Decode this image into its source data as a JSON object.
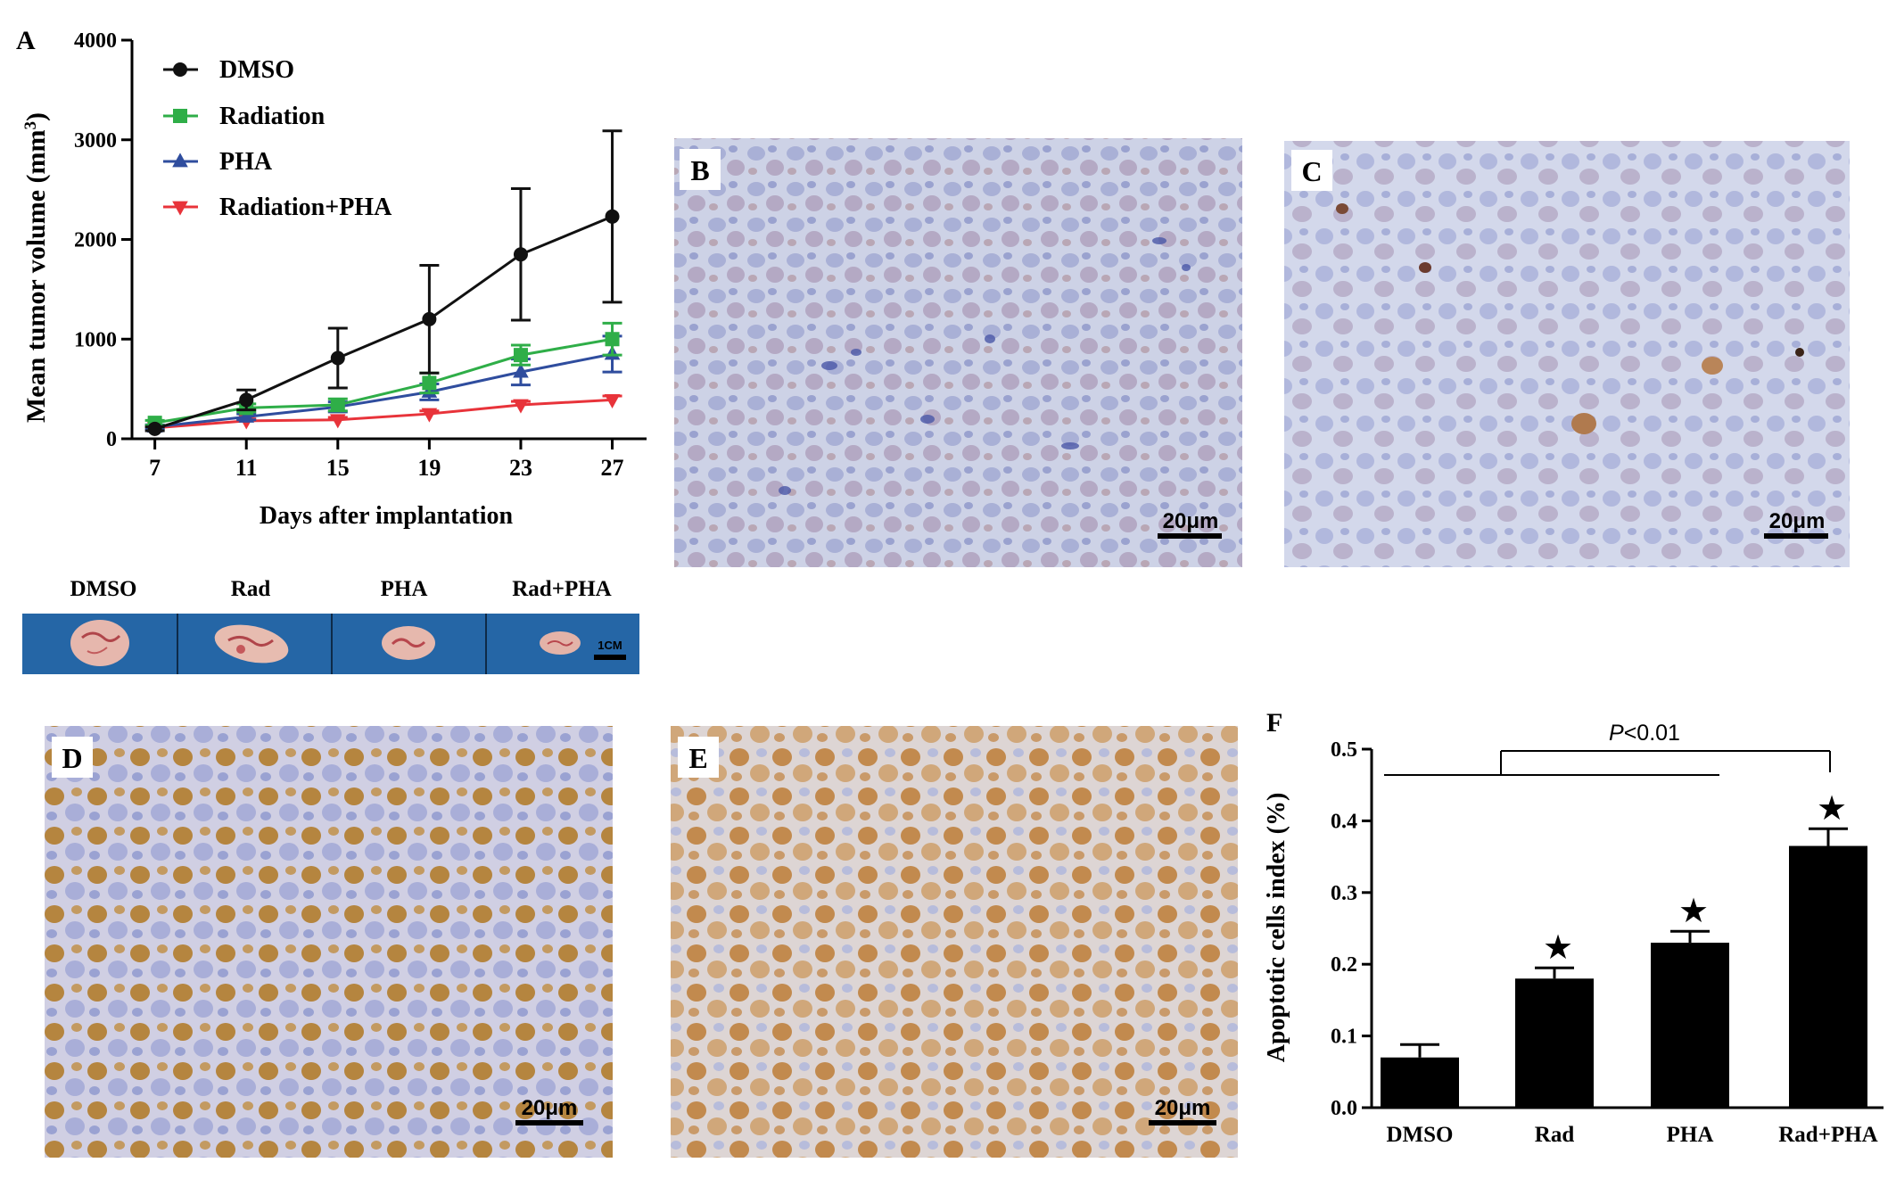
{
  "panels": {
    "A": {
      "letter": "A"
    },
    "B": {
      "letter": "B",
      "scale_bar": "20μm"
    },
    "C": {
      "letter": "C",
      "scale_bar": "20μm"
    },
    "D": {
      "letter": "D",
      "scale_bar": "20μm"
    },
    "E": {
      "letter": "E",
      "scale_bar": "20μm"
    },
    "F": {
      "letter": "F"
    }
  },
  "tumor_photo": {
    "labels": [
      "DMSO",
      "Rad",
      "PHA",
      "Rad+PHA"
    ],
    "scale_label": "1CM",
    "background_color": "#2566a6"
  },
  "colors": {
    "DMSO": "#111111",
    "Radiation": "#2fae48",
    "PHA": "#2f4d9e",
    "Radiation+PHA": "#e8333a",
    "bars": "#000000"
  },
  "chart_data": [
    {
      "type": "line",
      "panel": "A",
      "xlabel": "Days after implantation",
      "ylabel": "Mean tumor volume (mm",
      "ylabel_sup": "3",
      "ylabel_end": ")",
      "x": [
        7,
        11,
        15,
        19,
        23,
        27
      ],
      "xlim": [
        6,
        28.5
      ],
      "ylim": [
        0,
        4000
      ],
      "yticks": [
        0,
        1000,
        2000,
        3000,
        4000
      ],
      "legend_position": "top-left",
      "series": [
        {
          "name": "DMSO",
          "marker": "circle",
          "values": [
            100,
            390,
            810,
            1200,
            1850,
            2230
          ],
          "err": [
            20,
            100,
            300,
            540,
            660,
            860
          ]
        },
        {
          "name": "Radiation",
          "marker": "square",
          "values": [
            160,
            310,
            340,
            560,
            840,
            1000
          ],
          "err": [
            25,
            40,
            60,
            100,
            100,
            160
          ]
        },
        {
          "name": "PHA",
          "marker": "triangle-up",
          "values": [
            120,
            220,
            320,
            470,
            670,
            850
          ],
          "err": [
            20,
            30,
            50,
            80,
            130,
            180
          ]
        },
        {
          "name": "Radiation+PHA",
          "marker": "triangle-down",
          "values": [
            110,
            180,
            190,
            250,
            340,
            390
          ],
          "err": [
            15,
            20,
            25,
            30,
            35,
            40
          ]
        }
      ]
    },
    {
      "type": "bar",
      "panel": "F",
      "categories": [
        "DMSO",
        "Rad",
        "PHA",
        "Rad+PHA"
      ],
      "values": [
        0.07,
        0.18,
        0.23,
        0.365
      ],
      "err": [
        0.018,
        0.015,
        0.016,
        0.024
      ],
      "star": [
        false,
        true,
        true,
        true
      ],
      "star_symbol": "★",
      "ylabel": "Apoptotic cells index (%)",
      "ylim": [
        0,
        0.5
      ],
      "yticks": [
        "0.0",
        "0.1",
        "0.2",
        "0.3",
        "0.4",
        "0.5"
      ],
      "annotation": {
        "p_label": "P",
        "p_rest": "<0.01"
      }
    }
  ]
}
